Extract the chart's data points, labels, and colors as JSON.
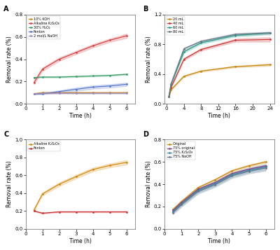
{
  "panel_A": {
    "title": "A",
    "xlabel": "Time (h)",
    "ylabel": "Removal rate (%)",
    "ylim": [
      0,
      0.8
    ],
    "yticks": [
      0.0,
      0.2,
      0.4,
      0.6,
      0.8
    ],
    "xlim": [
      0,
      6.5
    ],
    "xticks": [
      0,
      1,
      2,
      3,
      4,
      5,
      6
    ],
    "lines": [
      {
        "label": "10% KOH",
        "color": "#d4880a",
        "x": [
          0.5,
          1,
          2,
          3,
          4,
          5,
          6
        ],
        "y": [
          0.09,
          0.1,
          0.1,
          0.1,
          0.1,
          0.1,
          0.1
        ],
        "yerr": [
          0.005,
          0.005,
          0.005,
          0.005,
          0.005,
          0.005,
          0.005
        ]
      },
      {
        "label": "Alkaline K₂S₂O₈",
        "color": "#d94040",
        "x": [
          0.5,
          1,
          2,
          3,
          4,
          5,
          6
        ],
        "y": [
          0.19,
          0.31,
          0.4,
          0.46,
          0.52,
          0.57,
          0.61
        ],
        "yerr": [
          0.015,
          0.015,
          0.015,
          0.015,
          0.015,
          0.015,
          0.02
        ]
      },
      {
        "label": "30% H₂O₂",
        "color": "#3b9e6a",
        "x": [
          0.5,
          1,
          2,
          3,
          4,
          5,
          6
        ],
        "y": [
          0.235,
          0.24,
          0.24,
          0.245,
          0.25,
          0.255,
          0.265
        ],
        "yerr": [
          0.005,
          0.005,
          0.005,
          0.005,
          0.005,
          0.005,
          0.005
        ]
      },
      {
        "label": "Fenton",
        "color": "#5577cc",
        "x": [
          0.5,
          1,
          2,
          3,
          4,
          5,
          6
        ],
        "y": [
          0.09,
          0.09,
          0.11,
          0.13,
          0.15,
          0.16,
          0.175
        ],
        "yerr": [
          0.005,
          0.005,
          0.01,
          0.015,
          0.015,
          0.015,
          0.015
        ]
      },
      {
        "label": "2 mol/L NaOH",
        "color": "#9988bb",
        "x": [
          0.5,
          1,
          2,
          3,
          4,
          5,
          6
        ],
        "y": [
          0.09,
          0.095,
          0.095,
          0.095,
          0.095,
          0.095,
          0.095
        ],
        "yerr": [
          0.005,
          0.005,
          0.005,
          0.005,
          0.005,
          0.005,
          0.005
        ]
      }
    ]
  },
  "panel_B": {
    "title": "B",
    "xlabel": "Time (h)",
    "ylabel": "Removal rate (%)",
    "ylim": [
      0,
      1.2
    ],
    "yticks": [
      0.0,
      0.4,
      0.8,
      1.2
    ],
    "xlim": [
      -0.5,
      25
    ],
    "xticks": [
      0,
      4,
      8,
      12,
      16,
      20,
      24
    ],
    "lines": [
      {
        "label": "20 mL",
        "color": "#c8860a",
        "x": [
          0.5,
          1,
          4,
          8,
          16,
          24
        ],
        "y": [
          0.1,
          0.19,
          0.37,
          0.44,
          0.5,
          0.525
        ],
        "yerr": [
          0.005,
          0.01,
          0.01,
          0.01,
          0.01,
          0.015
        ]
      },
      {
        "label": "40 mL",
        "color": "#cc3333",
        "x": [
          0.5,
          1,
          4,
          8,
          16,
          24
        ],
        "y": [
          0.1,
          0.22,
          0.6,
          0.73,
          0.855,
          0.865
        ],
        "yerr": [
          0.005,
          0.01,
          0.015,
          0.015,
          0.02,
          0.03
        ]
      },
      {
        "label": "60 mL",
        "color": "#2a9d8a",
        "x": [
          0.5,
          1,
          4,
          8,
          16,
          24
        ],
        "y": [
          0.1,
          0.26,
          0.7,
          0.82,
          0.92,
          0.95
        ],
        "yerr": [
          0.005,
          0.01,
          0.015,
          0.015,
          0.015,
          0.015
        ]
      },
      {
        "label": "80 mL",
        "color": "#667788",
        "x": [
          0.5,
          1,
          4,
          8,
          16,
          24
        ],
        "y": [
          0.1,
          0.27,
          0.74,
          0.84,
          0.935,
          0.955
        ],
        "yerr": [
          0.005,
          0.01,
          0.015,
          0.015,
          0.015,
          0.015
        ]
      }
    ]
  },
  "panel_C": {
    "title": "C",
    "xlabel": "Time (h)",
    "ylabel": "Removal rate (%)",
    "ylim": [
      0,
      1.0
    ],
    "yticks": [
      0.0,
      0.2,
      0.4,
      0.6,
      0.8,
      1.0
    ],
    "xlim": [
      0,
      6.5
    ],
    "xticks": [
      0,
      1,
      2,
      3,
      4,
      5,
      6
    ],
    "lines": [
      {
        "label": "Alkaline K₂S₂O₈",
        "color": "#d4880a",
        "x": [
          0.5,
          1,
          2,
          3,
          4,
          5,
          6
        ],
        "y": [
          0.21,
          0.39,
          0.5,
          0.585,
          0.665,
          0.71,
          0.745
        ],
        "yerr": [
          0.01,
          0.015,
          0.02,
          0.02,
          0.02,
          0.02,
          0.025
        ]
      },
      {
        "label": "Fenton",
        "color": "#cc3333",
        "x": [
          0.5,
          1,
          2,
          3,
          4,
          5,
          6
        ],
        "y": [
          0.2,
          0.175,
          0.19,
          0.19,
          0.19,
          0.19,
          0.19
        ],
        "yerr": [
          0.005,
          0.005,
          0.005,
          0.005,
          0.005,
          0.005,
          0.005
        ]
      }
    ]
  },
  "panel_D": {
    "title": "D",
    "xlabel": "Time (h)",
    "ylabel": "Removal rate (%)",
    "ylim": [
      0,
      0.8
    ],
    "yticks": [
      0.0,
      0.2,
      0.4,
      0.6,
      0.8
    ],
    "xlim": [
      0,
      6.5
    ],
    "xticks": [
      0,
      1,
      2,
      3,
      4,
      5,
      6
    ],
    "lines": [
      {
        "label": "Original",
        "color": "#c8860a",
        "x": [
          0.5,
          1,
          2,
          3,
          4,
          5,
          6
        ],
        "y": [
          0.175,
          0.245,
          0.37,
          0.44,
          0.52,
          0.565,
          0.6
        ],
        "yerr": [
          0.005,
          0.008,
          0.01,
          0.01,
          0.01,
          0.01,
          0.01
        ]
      },
      {
        "label": "75% original",
        "color": "#884488",
        "x": [
          0.5,
          1,
          2,
          3,
          4,
          5,
          6
        ],
        "y": [
          0.165,
          0.235,
          0.355,
          0.415,
          0.495,
          0.535,
          0.565
        ],
        "yerr": [
          0.005,
          0.008,
          0.01,
          0.01,
          0.01,
          0.01,
          0.01
        ]
      },
      {
        "label": "75% K₂S₂O₈",
        "color": "#3388aa",
        "x": [
          0.5,
          1,
          2,
          3,
          4,
          5,
          6
        ],
        "y": [
          0.155,
          0.225,
          0.345,
          0.405,
          0.485,
          0.525,
          0.555
        ],
        "yerr": [
          0.015,
          0.018,
          0.02,
          0.02,
          0.02,
          0.02,
          0.025
        ]
      },
      {
        "label": "75% NaOH",
        "color": "#667788",
        "x": [
          0.5,
          1,
          2,
          3,
          4,
          5,
          6
        ],
        "y": [
          0.145,
          0.215,
          0.335,
          0.395,
          0.475,
          0.515,
          0.545
        ],
        "yerr": [
          0.015,
          0.018,
          0.02,
          0.02,
          0.02,
          0.02,
          0.025
        ]
      }
    ]
  }
}
